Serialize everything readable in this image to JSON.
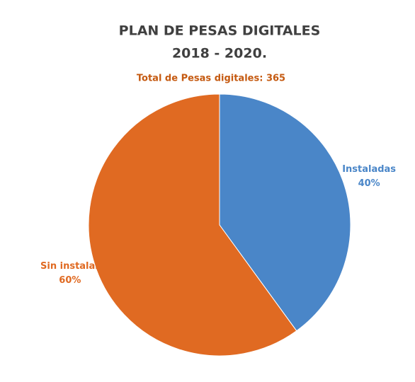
{
  "chart_data": {
    "type": "pie",
    "title": [
      "PLAN DE PESAS DIGITALES",
      "2018 - 2020."
    ],
    "subtitle": "Total de Pesas digitales: 365",
    "categories": [
      "Instaladas",
      "Sin instalar"
    ],
    "values": [
      40,
      60
    ],
    "value_labels": [
      "40%",
      "60%"
    ],
    "colors": [
      "#4a86c8",
      "#e06a22"
    ]
  }
}
